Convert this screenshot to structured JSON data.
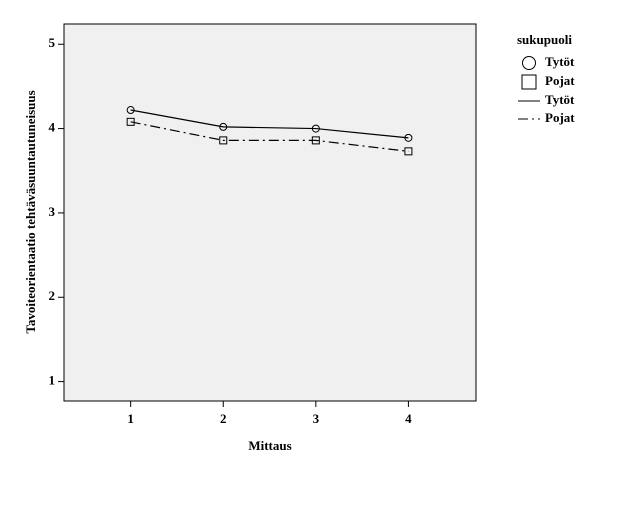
{
  "chart_data": {
    "type": "line",
    "x_label": "Mittaus",
    "y_label": "Tavoiteorientaatio tehtäväsuuntautuneisuus",
    "legend_title": "sukupuoli",
    "legend": "right",
    "x": [
      1,
      2,
      3,
      4
    ],
    "xlim": [
      0.28,
      4.73
    ],
    "xticks": [
      1,
      2,
      3,
      4
    ],
    "ylim": [
      0.77,
      5.24
    ],
    "yticks": [
      1,
      2,
      3,
      4,
      5
    ],
    "grid": false,
    "background": "#f0f0f0",
    "series": [
      {
        "name": "Tytöt",
        "color": "#000000",
        "marker": "circle",
        "dash": "solid",
        "values": [
          4.22,
          4.02,
          4.0,
          3.89
        ]
      },
      {
        "name": "Pojat",
        "color": "#000000",
        "marker": "square",
        "dash": "dashdot",
        "values": [
          4.08,
          3.86,
          3.86,
          3.73
        ]
      }
    ]
  }
}
